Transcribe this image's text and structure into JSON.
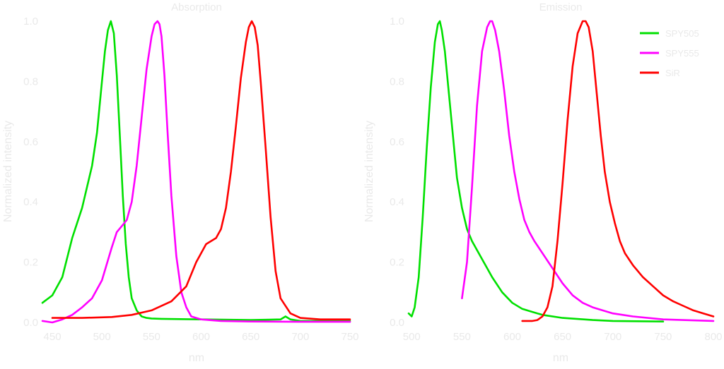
{
  "chart_data": [
    {
      "type": "line",
      "title": "Absorption",
      "xlabel": "nm",
      "ylabel": "Normalized intensity",
      "xlim": [
        440,
        750
      ],
      "ylim": [
        0,
        1.0
      ],
      "xticks": [
        "450",
        "500",
        "550",
        "600",
        "650",
        "700",
        "750"
      ],
      "yticks": [
        "0.0",
        "0.2",
        "0.4",
        "0.6",
        "0.8",
        "1.0"
      ],
      "grid": false,
      "series": [
        {
          "name": "SPY505",
          "color": "#00e000",
          "x": [
            440,
            450,
            460,
            470,
            480,
            490,
            495,
            500,
            503,
            506,
            509,
            512,
            515,
            518,
            521,
            524,
            527,
            530,
            535,
            540,
            545,
            550,
            560,
            600,
            650,
            680,
            685,
            690,
            700,
            750
          ],
          "y": [
            0.065,
            0.09,
            0.15,
            0.28,
            0.38,
            0.52,
            0.63,
            0.8,
            0.9,
            0.97,
            1.0,
            0.96,
            0.82,
            0.62,
            0.42,
            0.26,
            0.15,
            0.08,
            0.04,
            0.02,
            0.015,
            0.013,
            0.012,
            0.01,
            0.008,
            0.01,
            0.02,
            0.01,
            0.005,
            0.005
          ]
        },
        {
          "name": "SPY555",
          "color": "#ff00ff",
          "x": [
            440,
            450,
            460,
            470,
            480,
            490,
            500,
            510,
            515,
            520,
            525,
            530,
            535,
            540,
            545,
            550,
            553,
            556,
            558,
            560,
            563,
            566,
            570,
            575,
            580,
            585,
            590,
            600,
            620,
            650,
            700,
            750
          ],
          "y": [
            0.005,
            0.0,
            0.01,
            0.025,
            0.05,
            0.08,
            0.14,
            0.25,
            0.3,
            0.32,
            0.34,
            0.4,
            0.52,
            0.68,
            0.84,
            0.95,
            0.99,
            1.0,
            0.99,
            0.95,
            0.82,
            0.64,
            0.42,
            0.22,
            0.1,
            0.05,
            0.02,
            0.01,
            0.005,
            0.003,
            0.002,
            0.002
          ]
        },
        {
          "name": "SiR",
          "color": "#ff0000",
          "x": [
            450,
            480,
            510,
            530,
            550,
            570,
            585,
            595,
            605,
            615,
            620,
            625,
            630,
            635,
            640,
            645,
            648,
            651,
            654,
            657,
            660,
            665,
            670,
            675,
            680,
            690,
            700,
            720,
            750
          ],
          "y": [
            0.015,
            0.015,
            0.018,
            0.025,
            0.04,
            0.07,
            0.12,
            0.2,
            0.26,
            0.28,
            0.31,
            0.38,
            0.5,
            0.65,
            0.81,
            0.93,
            0.98,
            1.0,
            0.98,
            0.92,
            0.8,
            0.58,
            0.35,
            0.17,
            0.08,
            0.03,
            0.015,
            0.01,
            0.01
          ]
        }
      ]
    },
    {
      "type": "line",
      "title": "Emission",
      "xlabel": "nm",
      "ylabel": "Normalized intensity",
      "xlim": [
        497,
        800
      ],
      "ylim": [
        0,
        1.0
      ],
      "xticks": [
        "500",
        "550",
        "600",
        "650",
        "700",
        "750",
        "800"
      ],
      "yticks": [
        "0.0",
        "0.2",
        "0.4",
        "0.6",
        "0.8",
        "1.0"
      ],
      "grid": false,
      "legend": "top-right",
      "series": [
        {
          "name": "SPY505",
          "color": "#00e000",
          "x": [
            497,
            500,
            503,
            507,
            511,
            515,
            519,
            523,
            526,
            528,
            530,
            533,
            537,
            541,
            545,
            550,
            555,
            560,
            565,
            570,
            575,
            580,
            590,
            600,
            610,
            620,
            630,
            650,
            680,
            700,
            750
          ],
          "y": [
            0.03,
            0.02,
            0.05,
            0.15,
            0.35,
            0.58,
            0.78,
            0.93,
            0.99,
            1.0,
            0.97,
            0.9,
            0.76,
            0.62,
            0.48,
            0.38,
            0.31,
            0.27,
            0.24,
            0.21,
            0.18,
            0.15,
            0.1,
            0.065,
            0.045,
            0.035,
            0.025,
            0.015,
            0.008,
            0.005,
            0.003
          ]
        },
        {
          "name": "SPY555",
          "color": "#ff00ff",
          "x": [
            550,
            555,
            560,
            565,
            570,
            575,
            578,
            580,
            583,
            587,
            592,
            597,
            602,
            607,
            612,
            617,
            622,
            630,
            640,
            650,
            660,
            670,
            680,
            700,
            720,
            750,
            800
          ],
          "y": [
            0.08,
            0.2,
            0.45,
            0.72,
            0.9,
            0.98,
            1.0,
            1.0,
            0.97,
            0.9,
            0.77,
            0.62,
            0.5,
            0.41,
            0.34,
            0.3,
            0.27,
            0.23,
            0.18,
            0.13,
            0.09,
            0.065,
            0.05,
            0.03,
            0.02,
            0.01,
            0.005
          ]
        },
        {
          "name": "SiR",
          "color": "#ff0000",
          "x": [
            610,
            620,
            625,
            630,
            635,
            640,
            645,
            650,
            655,
            660,
            665,
            670,
            673,
            676,
            680,
            684,
            688,
            692,
            697,
            702,
            707,
            712,
            720,
            730,
            740,
            750,
            760,
            770,
            780,
            790,
            800
          ],
          "y": [
            0.005,
            0.005,
            0.008,
            0.02,
            0.05,
            0.12,
            0.27,
            0.46,
            0.67,
            0.85,
            0.96,
            1.0,
            1.0,
            0.98,
            0.9,
            0.76,
            0.62,
            0.5,
            0.4,
            0.33,
            0.27,
            0.23,
            0.19,
            0.15,
            0.12,
            0.09,
            0.07,
            0.055,
            0.04,
            0.03,
            0.02
          ]
        }
      ]
    }
  ]
}
